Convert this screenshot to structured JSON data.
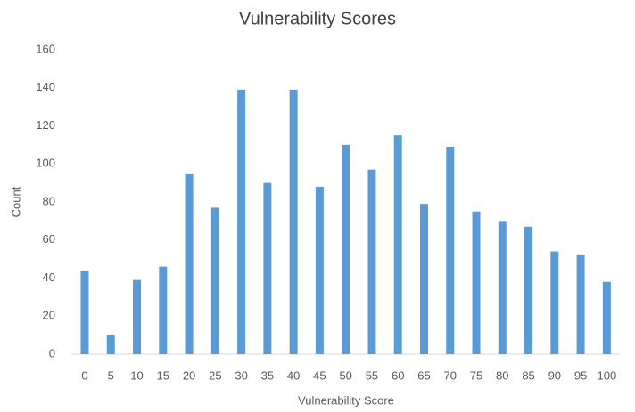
{
  "chart_data": {
    "type": "bar",
    "title": "Vulnerability Scores",
    "x_label": "Vulnerability Score",
    "y_label": "Count",
    "categories": [
      "0",
      "5",
      "10",
      "15",
      "20",
      "25",
      "30",
      "35",
      "40",
      "45",
      "50",
      "55",
      "60",
      "65",
      "70",
      "75",
      "80",
      "85",
      "90",
      "95",
      "100"
    ],
    "values": [
      44,
      10,
      39,
      46,
      95,
      77,
      139,
      90,
      139,
      88,
      110,
      97,
      115,
      79,
      109,
      75,
      70,
      67,
      54,
      52,
      38
    ],
    "color": "#5b9bd5",
    "ylim": [
      0,
      160
    ],
    "yticks": [
      0,
      20,
      40,
      60,
      80,
      100,
      120,
      140,
      160
    ],
    "grid": false
  }
}
